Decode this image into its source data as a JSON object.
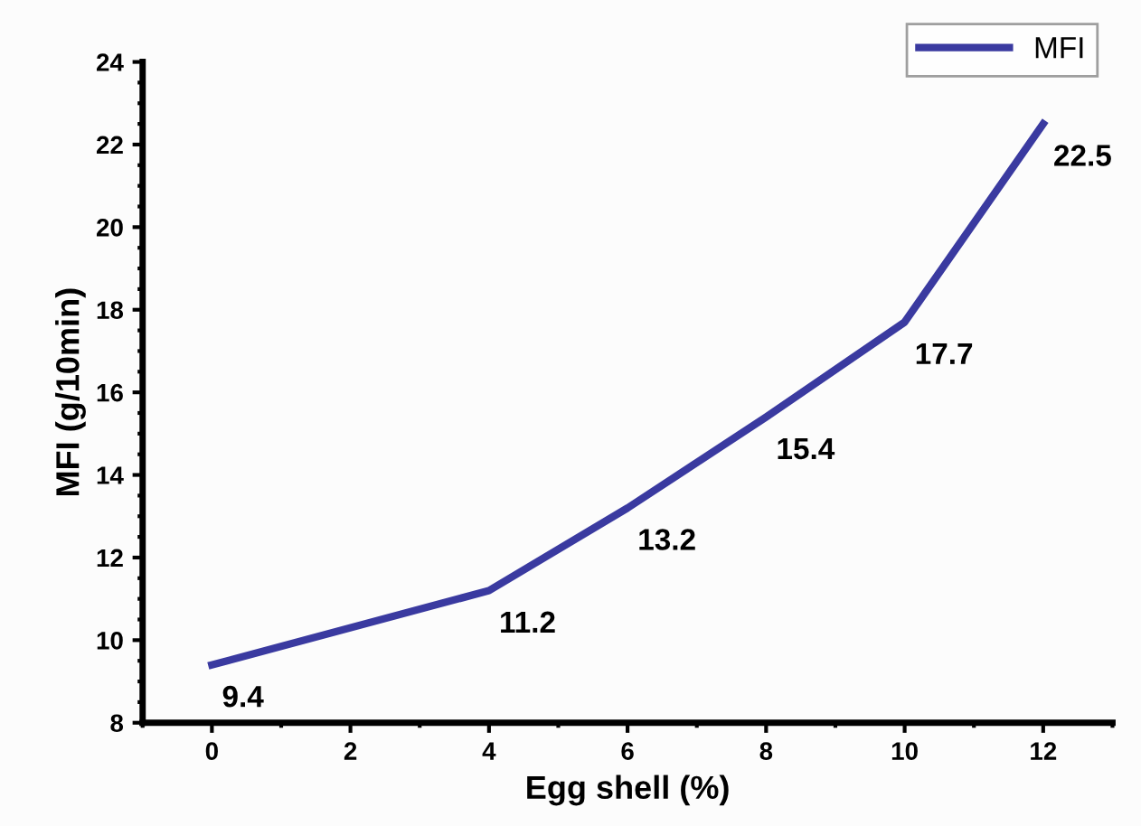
{
  "chart_data": {
    "type": "line",
    "xlabel": "Egg shell (%)",
    "ylabel": "MFI (g/10min)",
    "x": [
      0,
      4,
      6,
      8,
      10,
      12
    ],
    "series": [
      {
        "name": "MFI",
        "color": "#3a3aa0",
        "values": [
          9.4,
          11.2,
          13.2,
          15.4,
          17.7,
          22.5
        ]
      }
    ],
    "xlim": [
      -1,
      13
    ],
    "xticks": [
      0,
      2,
      4,
      6,
      8,
      10,
      12
    ],
    "ylim": [
      8,
      24
    ],
    "yticks": [
      8,
      10,
      12,
      14,
      16,
      18,
      20,
      22,
      24
    ],
    "data_labels": true,
    "legend": "top right",
    "grid": false,
    "marker": "none",
    "line_style": "solid"
  }
}
